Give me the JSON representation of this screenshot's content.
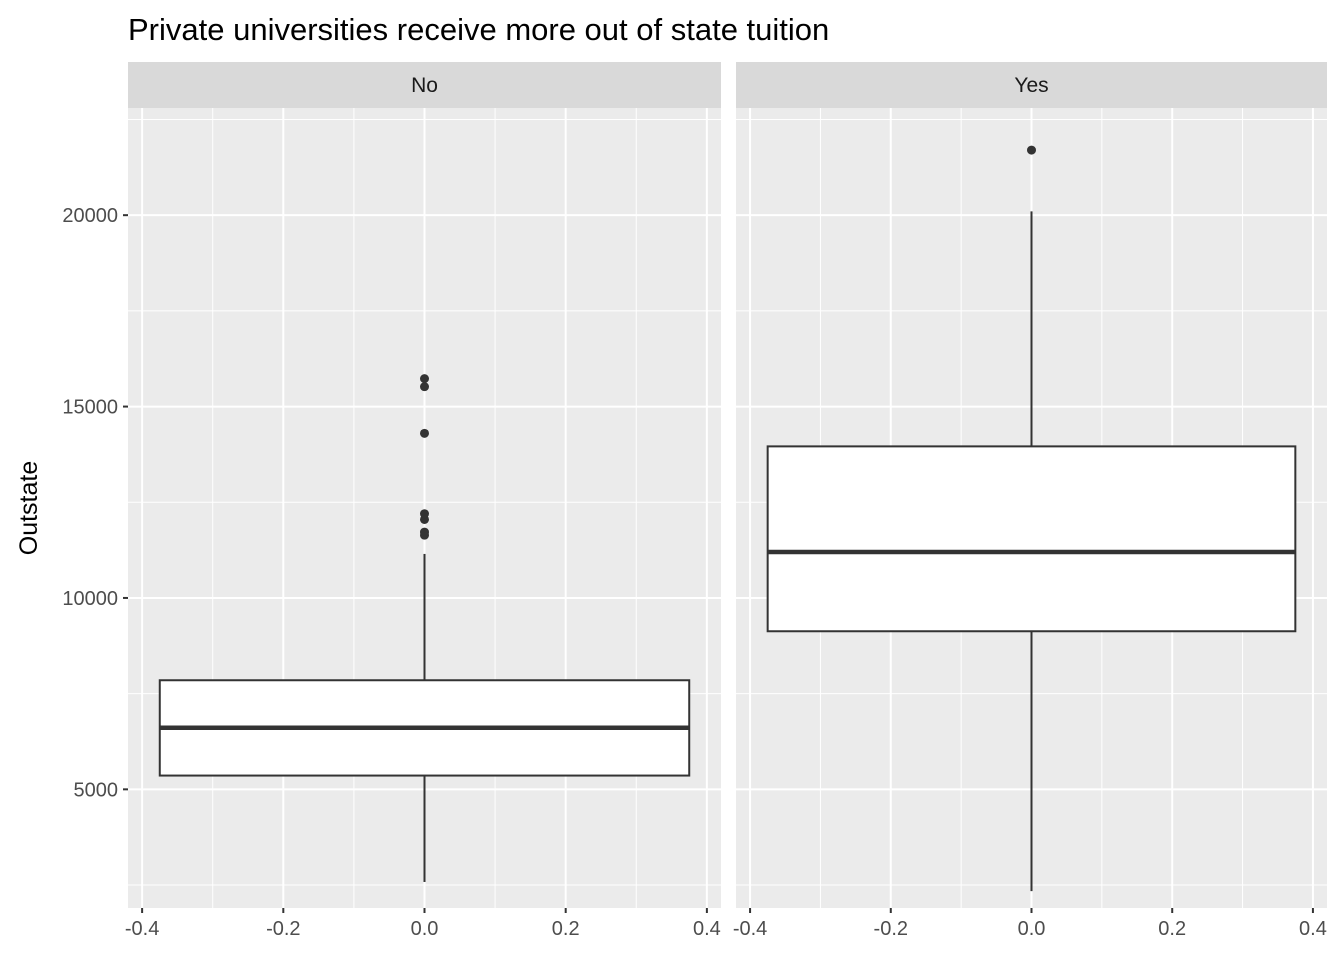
{
  "chart_data": {
    "type": "boxplot",
    "title": "Private universities receive more out of state tuition",
    "ylabel": "Outstate",
    "xlabel": "",
    "facet_variable_values": [
      "No",
      "Yes"
    ],
    "x_axis": {
      "range": [
        -0.42,
        0.42
      ],
      "ticks": [
        -0.4,
        -0.2,
        0.0,
        0.2,
        0.4
      ],
      "tick_labels": [
        "-0.4",
        "-0.2",
        "0.0",
        "0.2",
        "0.4"
      ]
    },
    "y_axis": {
      "range": [
        1900,
        22800
      ],
      "ticks": [
        5000,
        10000,
        15000,
        20000
      ],
      "tick_labels": [
        "5000",
        "10000",
        "15000",
        "20000"
      ]
    },
    "grid": true,
    "colors": {
      "panel_bg": "#EBEBEB",
      "strip_bg": "#D9D9D9",
      "grid": "#FFFFFF",
      "box_fill": "#FFFFFF",
      "box_stroke": "#333333"
    },
    "panels": [
      {
        "label": "No",
        "box": {
          "x_center": 0.0,
          "x_halfwidth": 0.375,
          "min": 2580,
          "q1": 5360,
          "median": 6610,
          "q3": 7850,
          "max": 11150,
          "outliers": [
            11640,
            11720,
            12050,
            12200,
            14300,
            15520,
            15730
          ]
        }
      },
      {
        "label": "Yes",
        "box": {
          "x_center": 0.0,
          "x_halfwidth": 0.375,
          "min": 2340,
          "q1": 9130,
          "median": 11200,
          "q3": 13960,
          "max": 20100,
          "outliers": [
            21700
          ]
        }
      }
    ]
  }
}
